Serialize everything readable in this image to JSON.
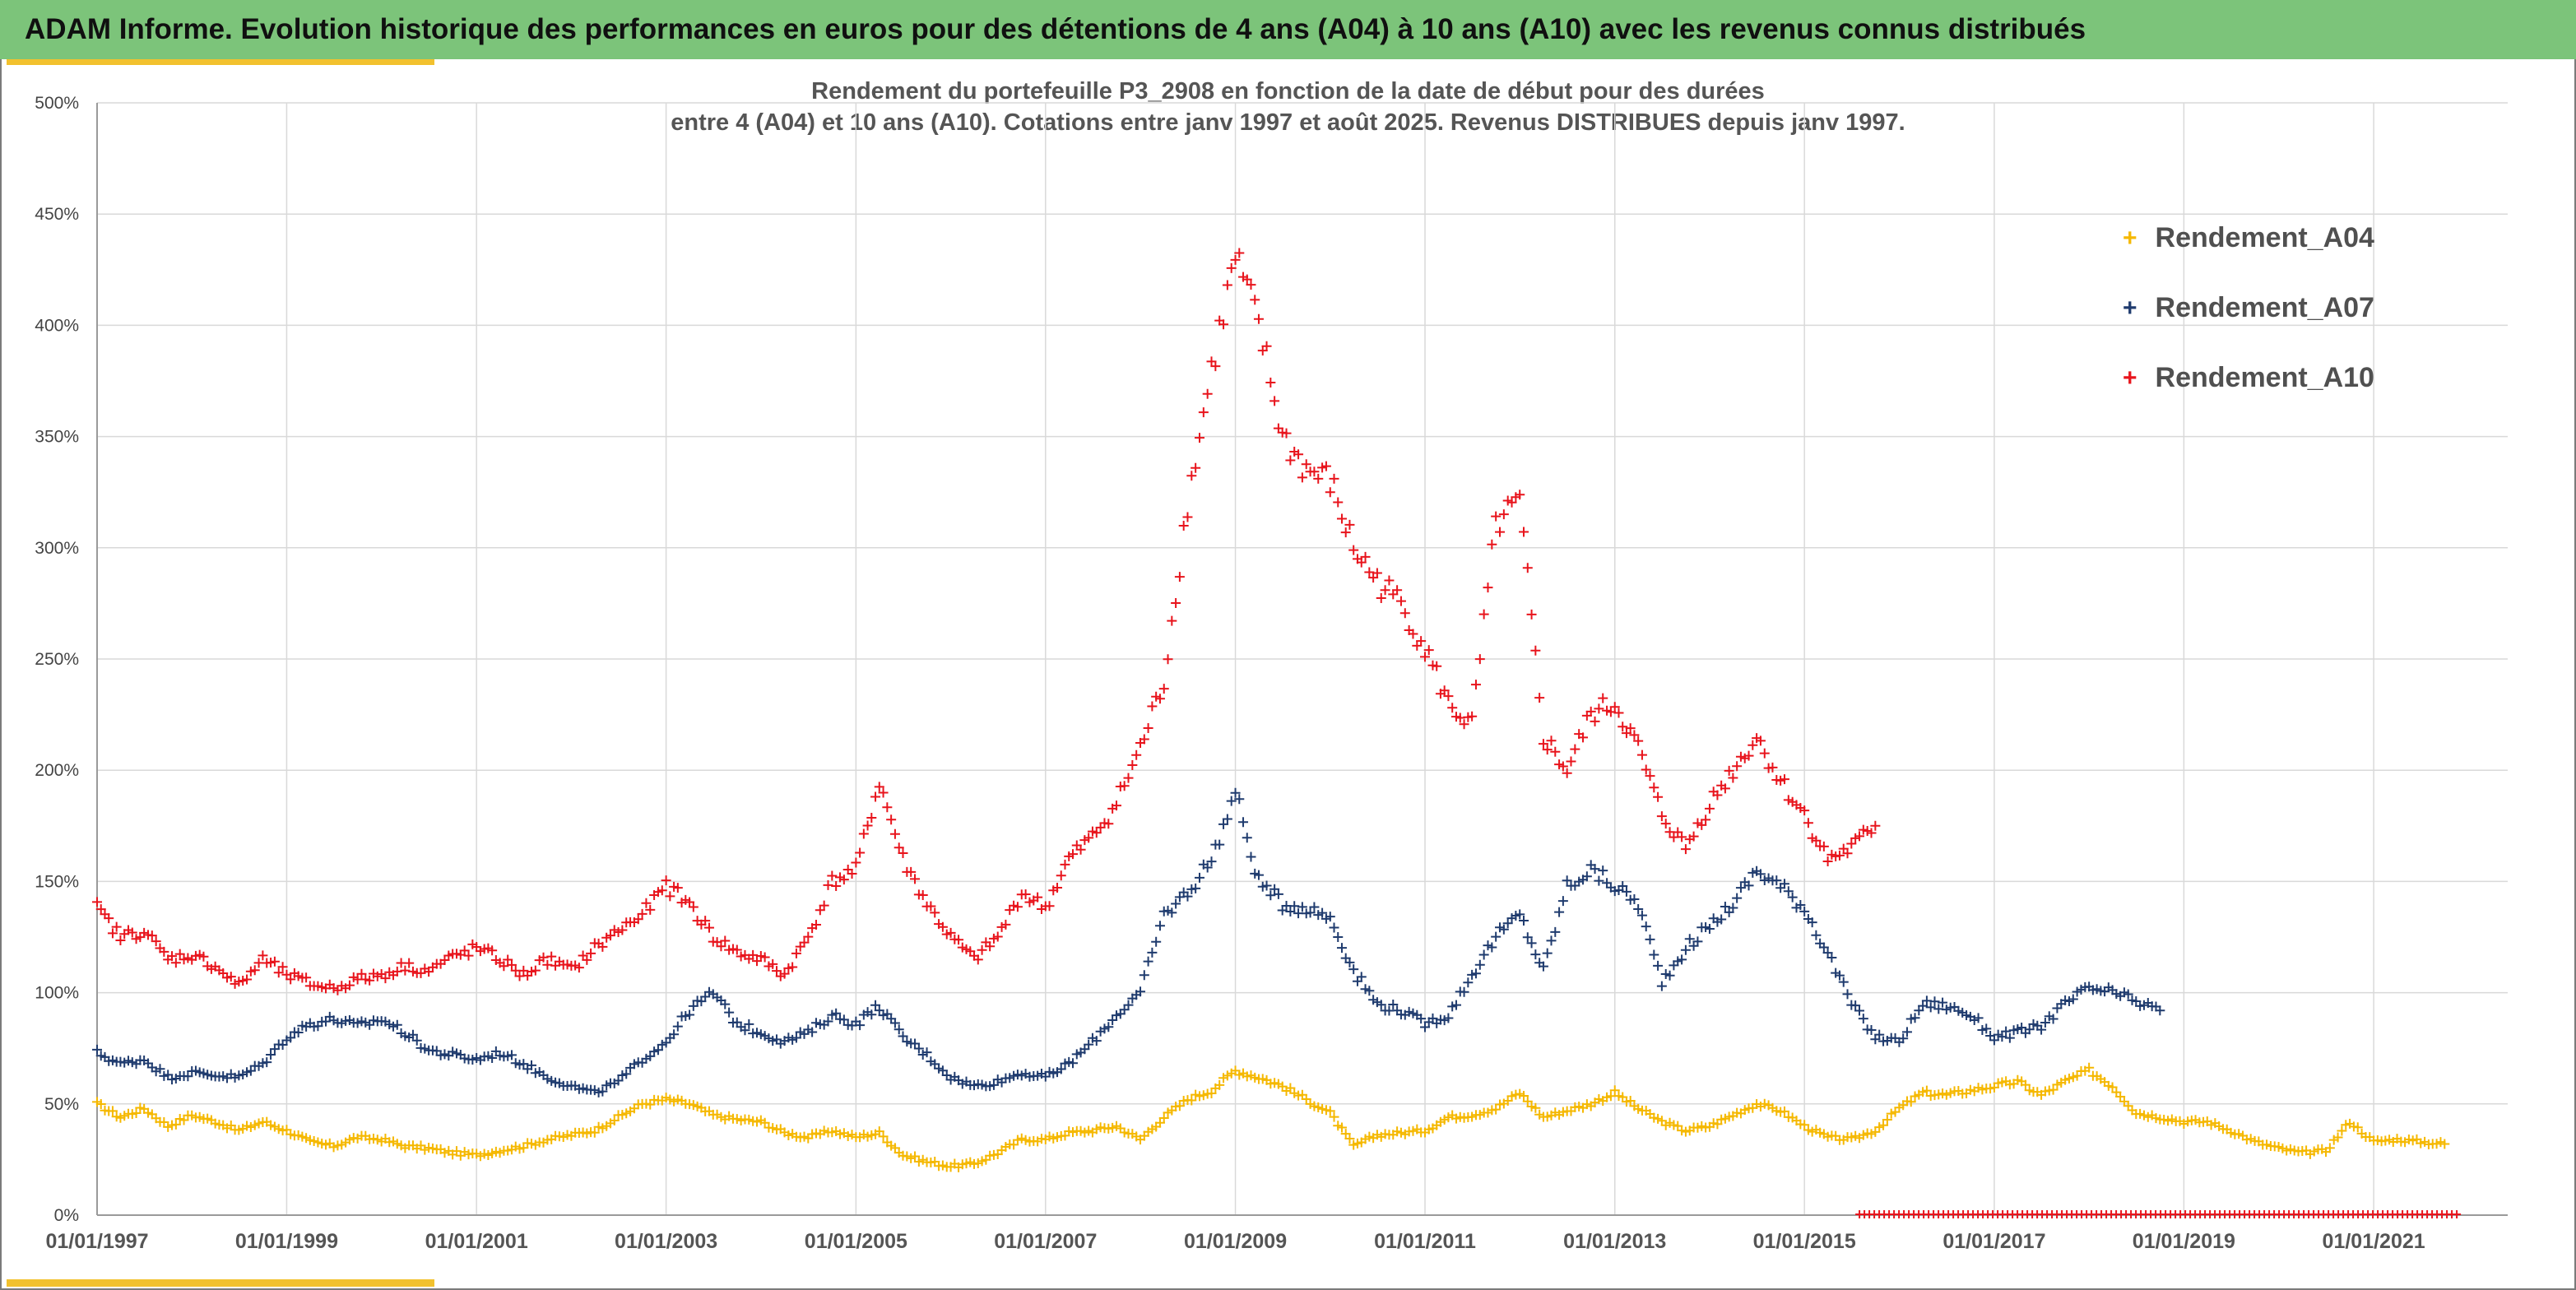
{
  "banner": {
    "title": "ADAM Informe. Evolution historique des performances en euros pour des détentions de 4 ans (A04) à 10 ans (A10) avec les revenus connus distribués"
  },
  "colors": {
    "banner_bg": "#7cc47a",
    "accent": "#f2c12e",
    "A04": "#f5b800",
    "A07": "#1f3b6e",
    "A10": "#e8141c",
    "grid": "#d9d9d9"
  },
  "chart_data": {
    "type": "scatter",
    "title_line1": "Rendement du portefeuille P3_2908 en fonction de la date de début pour des durées",
    "title_line2": "entre 4 (A04) et 10 ans (A10). Cotations entre janv 1997 et août 2025. Revenus DISTRIBUES depuis janv 1997.",
    "xlabel": "",
    "ylabel": "",
    "x_axis": {
      "type": "date",
      "min": "1997-01-01",
      "max": "2022-06-01"
    },
    "y_axis": {
      "min": 0,
      "max": 500,
      "unit": "%"
    },
    "y_ticks": [
      "0%",
      "50%",
      "100%",
      "150%",
      "200%",
      "250%",
      "300%",
      "350%",
      "400%",
      "450%",
      "500%"
    ],
    "x_ticks": [
      "01/01/1997",
      "01/01/1999",
      "01/01/2001",
      "01/01/2003",
      "01/01/2005",
      "01/01/2007",
      "01/01/2009",
      "01/01/2011",
      "01/01/2013",
      "01/01/2015",
      "01/01/2017",
      "01/01/2019",
      "01/01/2021"
    ],
    "x_tick_dates": [
      "1997-01-01",
      "1999-01-01",
      "2001-01-01",
      "2003-01-01",
      "2005-01-01",
      "2007-01-01",
      "2009-01-01",
      "2011-01-01",
      "2013-01-01",
      "2015-01-01",
      "2017-01-01",
      "2019-01-01",
      "2021-01-01"
    ],
    "grid": true,
    "legend_position": "top-right",
    "marker": "+",
    "series": [
      {
        "name": "Rendement_A04",
        "color": "#f5b800",
        "x": [
          "1997-01-01",
          "1997-04-01",
          "1997-07-01",
          "1997-10-01",
          "1998-01-01",
          "1998-04-01",
          "1998-07-01",
          "1998-10-01",
          "1999-01-01",
          "1999-04-01",
          "1999-07-01",
          "1999-10-01",
          "2000-01-01",
          "2000-04-01",
          "2000-07-01",
          "2000-10-01",
          "2001-01-01",
          "2001-04-01",
          "2001-07-01",
          "2001-10-01",
          "2002-01-01",
          "2002-04-01",
          "2002-07-01",
          "2002-10-01",
          "2003-01-01",
          "2003-04-01",
          "2003-07-01",
          "2003-10-01",
          "2004-01-01",
          "2004-04-01",
          "2004-07-01",
          "2004-10-01",
          "2005-01-01",
          "2005-04-01",
          "2005-07-01",
          "2005-10-01",
          "2006-01-01",
          "2006-04-01",
          "2006-07-01",
          "2006-10-01",
          "2007-01-01",
          "2007-04-01",
          "2007-07-01",
          "2007-10-01",
          "2008-01-01",
          "2008-04-01",
          "2008-07-01",
          "2008-10-01",
          "2009-01-01",
          "2009-04-01",
          "2009-07-01",
          "2009-10-01",
          "2010-01-01",
          "2010-04-01",
          "2010-07-01",
          "2010-10-01",
          "2011-01-01",
          "2011-04-01",
          "2011-07-01",
          "2011-10-01",
          "2012-01-01",
          "2012-04-01",
          "2012-07-01",
          "2012-10-01",
          "2013-01-01",
          "2013-04-01",
          "2013-07-01",
          "2013-10-01",
          "2014-01-01",
          "2014-04-01",
          "2014-07-01",
          "2014-10-01",
          "2015-01-01",
          "2015-04-01",
          "2015-07-01",
          "2015-10-01",
          "2016-01-01",
          "2016-04-01",
          "2016-07-01",
          "2016-10-01",
          "2017-01-01",
          "2017-04-01",
          "2017-07-01",
          "2017-10-01",
          "2018-01-01",
          "2018-04-01",
          "2018-07-01",
          "2018-10-01",
          "2019-01-01",
          "2019-04-01",
          "2019-07-01",
          "2019-10-01",
          "2020-01-01",
          "2020-04-01",
          "2020-07-01",
          "2020-10-01",
          "2021-01-01",
          "2021-04-01",
          "2021-07-01",
          "2021-10-01"
        ],
        "values": [
          50,
          44,
          48,
          40,
          45,
          42,
          38,
          42,
          38,
          33,
          31,
          35,
          34,
          31,
          30,
          28,
          27,
          29,
          31,
          34,
          36,
          38,
          44,
          50,
          52,
          50,
          45,
          43,
          42,
          37,
          35,
          38,
          35,
          37,
          27,
          24,
          22,
          23,
          28,
          34,
          34,
          37,
          38,
          40,
          34,
          44,
          52,
          56,
          65,
          62,
          58,
          52,
          46,
          31,
          36,
          37,
          38,
          44,
          45,
          48,
          55,
          44,
          47,
          50,
          55,
          48,
          42,
          38,
          40,
          45,
          50,
          47,
          40,
          35,
          34,
          38,
          48,
          55,
          54,
          56,
          58,
          60,
          54,
          60,
          65,
          58,
          46,
          44,
          42,
          42,
          38,
          33,
          30,
          28,
          29,
          42,
          33,
          34,
          33,
          32
        ]
      },
      {
        "name": "Rendement_A07",
        "color": "#1f3b6e",
        "x": [
          "1997-01-01",
          "1997-04-01",
          "1997-07-01",
          "1997-10-01",
          "1998-01-01",
          "1998-04-01",
          "1998-07-01",
          "1998-10-01",
          "1999-01-01",
          "1999-04-01",
          "1999-07-01",
          "1999-10-01",
          "2000-01-01",
          "2000-04-01",
          "2000-07-01",
          "2000-10-01",
          "2001-01-01",
          "2001-04-01",
          "2001-07-01",
          "2001-10-01",
          "2002-01-01",
          "2002-04-01",
          "2002-07-01",
          "2002-10-01",
          "2003-01-01",
          "2003-04-01",
          "2003-07-01",
          "2003-10-01",
          "2004-01-01",
          "2004-04-01",
          "2004-07-01",
          "2004-10-01",
          "2005-01-01",
          "2005-04-01",
          "2005-07-01",
          "2005-10-01",
          "2006-01-01",
          "2006-04-01",
          "2006-07-01",
          "2006-10-01",
          "2007-01-01",
          "2007-04-01",
          "2007-07-01",
          "2007-10-01",
          "2008-01-01",
          "2008-04-01",
          "2008-07-01",
          "2008-10-01",
          "2009-01-01",
          "2009-04-01",
          "2009-07-01",
          "2009-10-01",
          "2010-01-01",
          "2010-04-01",
          "2010-07-01",
          "2010-10-01",
          "2011-01-01",
          "2011-04-01",
          "2011-07-01",
          "2011-10-01",
          "2012-01-01",
          "2012-04-01",
          "2012-07-01",
          "2012-10-01",
          "2013-01-01",
          "2013-04-01",
          "2013-07-01",
          "2013-10-01",
          "2014-01-01",
          "2014-04-01",
          "2014-07-01",
          "2014-10-01",
          "2015-01-01",
          "2015-04-01",
          "2015-07-01",
          "2015-10-01",
          "2016-01-01",
          "2016-04-01",
          "2016-07-01",
          "2016-10-01",
          "2017-01-01",
          "2017-04-01",
          "2017-07-01",
          "2017-10-01",
          "2018-01-01",
          "2018-04-01",
          "2018-07-01",
          "2018-10-01"
        ],
        "values": [
          73,
          68,
          70,
          62,
          64,
          63,
          62,
          68,
          80,
          86,
          88,
          85,
          88,
          82,
          74,
          72,
          70,
          73,
          68,
          62,
          58,
          55,
          60,
          70,
          78,
          92,
          100,
          86,
          82,
          78,
          82,
          90,
          86,
          94,
          80,
          72,
          62,
          58,
          60,
          64,
          62,
          68,
          78,
          90,
          100,
          135,
          145,
          160,
          190,
          150,
          140,
          138,
          134,
          110,
          95,
          92,
          86,
          90,
          108,
          125,
          135,
          110,
          148,
          155,
          148,
          140,
          105,
          120,
          130,
          140,
          155,
          148,
          138,
          118,
          95,
          80,
          78,
          95,
          94,
          90,
          80,
          82,
          85,
          95,
          102,
          100,
          96,
          92
        ]
      },
      {
        "name": "Rendement_A10",
        "color": "#e8141c",
        "x": [
          "1997-01-01",
          "1997-04-01",
          "1997-07-01",
          "1997-10-01",
          "1998-01-01",
          "1998-04-01",
          "1998-07-01",
          "1998-10-01",
          "1999-01-01",
          "1999-04-01",
          "1999-07-01",
          "1999-10-01",
          "2000-01-01",
          "2000-04-01",
          "2000-07-01",
          "2000-10-01",
          "2001-01-01",
          "2001-04-01",
          "2001-07-01",
          "2001-10-01",
          "2002-01-01",
          "2002-04-01",
          "2002-07-01",
          "2002-10-01",
          "2003-01-01",
          "2003-04-01",
          "2003-07-01",
          "2003-10-01",
          "2004-01-01",
          "2004-04-01",
          "2004-07-01",
          "2004-10-01",
          "2005-01-01",
          "2005-04-01",
          "2005-07-01",
          "2005-10-01",
          "2006-01-01",
          "2006-04-01",
          "2006-07-01",
          "2006-10-01",
          "2007-01-01",
          "2007-04-01",
          "2007-07-01",
          "2007-10-01",
          "2008-01-01",
          "2008-04-01",
          "2008-07-01",
          "2008-10-01",
          "2009-01-01",
          "2009-04-01",
          "2009-07-01",
          "2009-10-01",
          "2010-01-01",
          "2010-04-01",
          "2010-07-01",
          "2010-10-01",
          "2011-01-01",
          "2011-04-01",
          "2011-07-01",
          "2011-10-01",
          "2012-01-01",
          "2012-04-01",
          "2012-07-01",
          "2012-10-01",
          "2013-01-01",
          "2013-04-01",
          "2013-07-01",
          "2013-10-01",
          "2014-01-01",
          "2014-04-01",
          "2014-07-01",
          "2014-10-01",
          "2015-01-01",
          "2015-04-01",
          "2015-07-01",
          "2015-10-01"
        ],
        "values": [
          138,
          125,
          128,
          115,
          117,
          112,
          103,
          115,
          108,
          104,
          102,
          106,
          108,
          112,
          110,
          116,
          120,
          115,
          108,
          115,
          110,
          120,
          128,
          135,
          148,
          140,
          125,
          118,
          115,
          108,
          125,
          150,
          155,
          195,
          160,
          140,
          125,
          115,
          125,
          145,
          138,
          160,
          170,
          185,
          210,
          240,
          320,
          380,
          430,
          400,
          350,
          335,
          330,
          300,
          285,
          275,
          255,
          230,
          220,
          310,
          320,
          215,
          200,
          225,
          230,
          210,
          180,
          165,
          185,
          200,
          215,
          195,
          180,
          160,
          165,
          175
        ]
      },
      {
        "name": "",
        "color": "#e8141c",
        "x": [
          "2015-08-01",
          "2021-12-01"
        ],
        "values": [
          0,
          0
        ]
      }
    ]
  }
}
